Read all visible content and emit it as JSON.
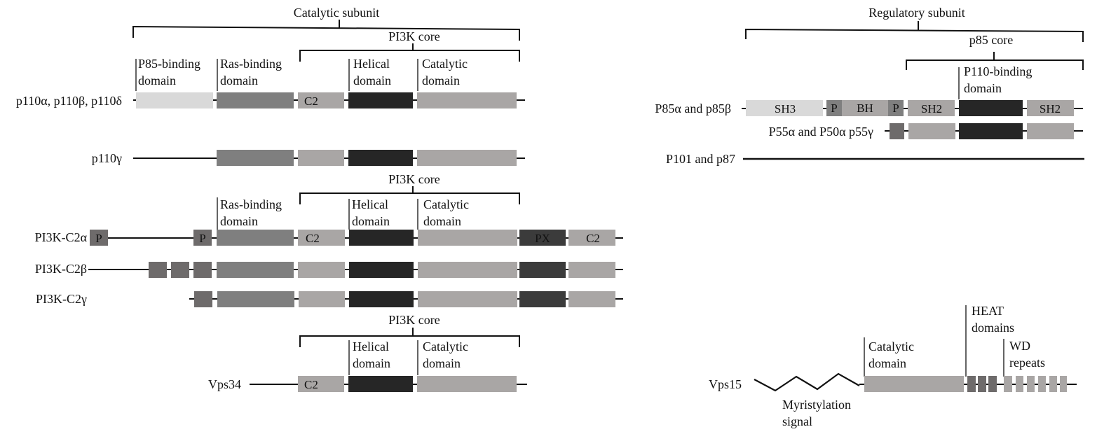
{
  "headers": {
    "catalytic_subunit": "Catalytic subunit",
    "regulatory_subunit": "Regulatory subunit",
    "pi3k_core": "PI3K core",
    "p85_core": "p85 core"
  },
  "domain_labels": {
    "p85_binding": [
      "P85-binding",
      "domain"
    ],
    "ras_binding": [
      "Ras-binding",
      "domain"
    ],
    "helical": [
      "Helical",
      "domain"
    ],
    "catalytic": [
      "Catalytic",
      "domain"
    ],
    "p110_binding": [
      "P110-binding",
      "domain"
    ],
    "heat": [
      "HEAT",
      "domains"
    ],
    "wd": [
      "WD",
      "repeats"
    ],
    "myristylation": [
      "Myristylation",
      "signal"
    ]
  },
  "box_labels": {
    "c2": "C2",
    "p": "P",
    "px": "PX",
    "sh3": "SH3",
    "bh": "BH",
    "sh2": "SH2"
  },
  "proteins": {
    "p110_abd": "p110α, p110β, p110δ",
    "p110g": "p110γ",
    "c2a": "PI3K-C2α",
    "c2b": "PI3K-C2β",
    "c2g": "PI3K-C2γ",
    "vps34": "Vps34",
    "p85": "P85α and p85β",
    "p55": "P55α and P50α p55γ",
    "p101": "P101 and p87",
    "vps15": "Vps15"
  },
  "colors": {
    "line": "#111111",
    "very_light": "#d9d9d9",
    "light": "#a9a6a5",
    "medium": "#7f7f7f",
    "small_dark": "#6e6b6b",
    "dark": "#3b3b3b",
    "darkest": "#262626"
  }
}
